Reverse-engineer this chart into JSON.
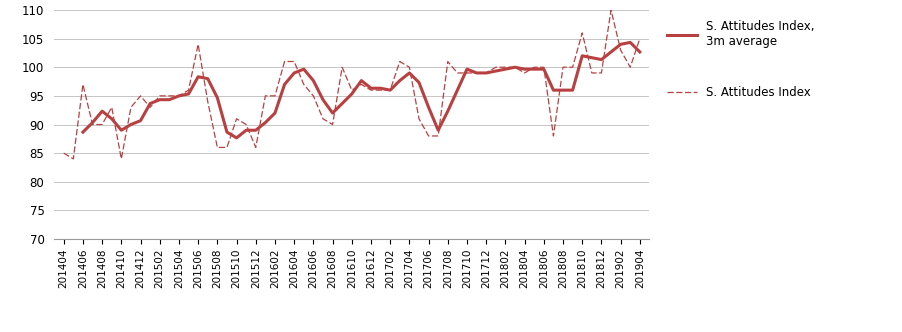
{
  "x_labels": [
    "201404",
    "201406",
    "201408",
    "201410",
    "201412",
    "201502",
    "201504",
    "201506",
    "201508",
    "201510",
    "201512",
    "201602",
    "201604",
    "201606",
    "201608",
    "201610",
    "201612",
    "201702",
    "201704",
    "201706",
    "201708",
    "201710",
    "201712",
    "201802",
    "201804",
    "201806",
    "201808",
    "201810",
    "201812",
    "201902",
    "201904"
  ],
  "raw_monthly": {
    "201404": 85,
    "201405": 84,
    "201406": 97,
    "201407": 90,
    "201408": 90,
    "201409": 93,
    "201410": 84,
    "201411": 93,
    "201412": 95,
    "201501": 93,
    "201502": 95,
    "201503": 95,
    "201504": 95,
    "201505": 96,
    "201506": 104,
    "201507": 94,
    "201508": 86,
    "201509": 86,
    "201510": 91,
    "201511": 90,
    "201512": 86,
    "201601": 95,
    "201602": 95,
    "201603": 101,
    "201604": 101,
    "201605": 97,
    "201606": 95,
    "201607": 91,
    "201608": 90,
    "201609": 100,
    "201610": 96,
    "201611": 97,
    "201612": 96,
    "201701": 96,
    "201702": 96,
    "201703": 101,
    "201704": 100,
    "201705": 91,
    "201706": 88,
    "201707": 88,
    "201708": 101,
    "201709": 99,
    "201710": 99,
    "201711": 99,
    "201712": 99,
    "201801": 100,
    "201802": 100,
    "201803": 100,
    "201804": 99,
    "201805": 100,
    "201806": 100,
    "201807": 88,
    "201808": 100,
    "201809": 100,
    "201810": 106,
    "201811": 99,
    "201812": 99,
    "201901": 110,
    "201902": 103,
    "201903": 100,
    "201904": 105
  },
  "line_color": "#b94040",
  "ylim": [
    70,
    110
  ],
  "yticks": [
    70,
    75,
    80,
    85,
    90,
    95,
    100,
    105,
    110
  ],
  "legend1": "S. Attitudes Index,\n3m average",
  "legend2": "S. Attitudes Index",
  "grid_color": "#bbbbbb",
  "bg_color": "#ffffff"
}
